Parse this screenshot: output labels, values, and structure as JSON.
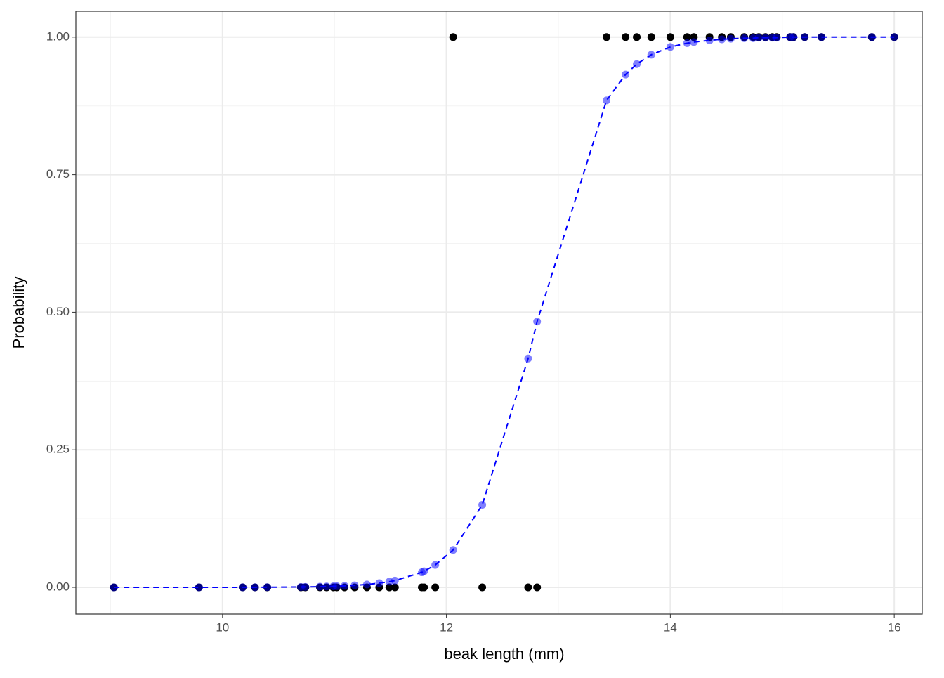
{
  "chart_data": {
    "type": "scatter",
    "x_label": "beak length (mm)",
    "y_label": "Probability",
    "x": [
      9.03,
      9.79,
      10.18,
      10.29,
      10.4,
      10.7,
      10.74,
      10.87,
      10.93,
      10.99,
      11.02,
      11.09,
      11.18,
      11.29,
      11.4,
      11.49,
      11.54,
      11.78,
      11.8,
      11.9,
      12.06,
      12.32,
      12.73,
      12.81,
      13.43,
      13.6,
      13.7,
      13.83,
      14.0,
      14.15,
      14.21,
      14.35,
      14.46,
      14.54,
      14.66,
      14.74,
      14.79,
      14.85,
      14.91,
      14.95,
      15.07,
      15.1,
      15.2,
      15.35,
      15.8,
      16.0
    ],
    "series": [
      {
        "color": "#000000",
        "opacity": 1,
        "line": false,
        "values": [
          0,
          0,
          0,
          0,
          0,
          0,
          0,
          0,
          0,
          0,
          0,
          0,
          0,
          0,
          0,
          0,
          0,
          0,
          0,
          0,
          1,
          0,
          0,
          0,
          1,
          1,
          1,
          1,
          1,
          1,
          1,
          1,
          1,
          1,
          1,
          1,
          1,
          1,
          1,
          1,
          1,
          1,
          1,
          1,
          1,
          1
        ]
      },
      {
        "color": "#0000ff",
        "opacity": 0.5,
        "line": true,
        "dashed": true,
        "values": [
          0,
          0,
          0.0001,
          0.0002,
          0.0003,
          0.0007,
          0.0008,
          0.0013,
          0.0016,
          0.0019,
          0.0021,
          0.0027,
          0.0037,
          0.0053,
          0.0077,
          0.0104,
          0.0123,
          0.0274,
          0.0293,
          0.0407,
          0.068,
          0.15,
          0.416,
          0.483,
          0.885,
          0.932,
          0.951,
          0.968,
          0.982,
          0.989,
          0.991,
          0.994,
          0.996,
          0.997,
          0.998,
          0.998,
          0.999,
          0.999,
          0.999,
          0.999,
          1,
          1,
          1,
          1,
          1,
          1
        ]
      }
    ],
    "xlim": [
      8.69,
      16.25
    ],
    "ylim": [
      -0.0485,
      1.047
    ],
    "xticks": [
      10,
      12,
      14,
      16
    ],
    "yticks": [
      {
        "value": 0,
        "label": "0.00"
      },
      {
        "value": 0.25,
        "label": "0.25"
      },
      {
        "value": 0.5,
        "label": "0.50"
      },
      {
        "value": 0.75,
        "label": "0.75"
      },
      {
        "value": 1,
        "label": "1.00"
      }
    ],
    "grid": true,
    "minor_grid": true
  }
}
